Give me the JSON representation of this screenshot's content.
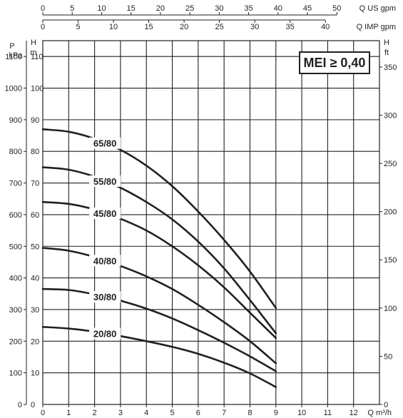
{
  "chart_data": {
    "type": "line",
    "mei_label": "MEI ≥ 0,40",
    "axes": {
      "x": {
        "label": "Q m³/h",
        "min": 0,
        "max": 13,
        "ticks": [
          0,
          1,
          2,
          3,
          4,
          5,
          6,
          7,
          8,
          9,
          10,
          11,
          12
        ]
      },
      "x_us": {
        "label": "Q US gpm",
        "ticks": [
          0,
          5,
          10,
          15,
          20,
          25,
          30,
          35,
          40,
          45,
          50
        ]
      },
      "x_imp": {
        "label": "Q IMP gpm",
        "ticks": [
          0,
          5,
          10,
          15,
          20,
          25,
          30,
          35,
          40
        ]
      },
      "y_m": {
        "label_top": "H",
        "label_unit": "m",
        "min": 0,
        "max": 115,
        "ticks": [
          0,
          10,
          20,
          30,
          40,
          50,
          60,
          70,
          80,
          90,
          100,
          110
        ]
      },
      "y_kpa": {
        "label_top": "P",
        "label_unit": "kPa",
        "ticks": [
          0,
          100,
          200,
          300,
          400,
          500,
          600,
          700,
          800,
          900,
          1000,
          1100
        ]
      },
      "y_ft": {
        "label_top": "H",
        "label_unit": "ft",
        "ticks": [
          0,
          50,
          100,
          150,
          200,
          250,
          300,
          350
        ]
      },
      "grid": true
    },
    "series": [
      {
        "name": "65/80",
        "x": [
          0,
          1,
          2,
          3,
          4,
          5,
          6,
          7,
          8,
          9
        ],
        "y": [
          87,
          86.2,
          84,
          80.5,
          75.5,
          69,
          61,
          52,
          42,
          30.5
        ]
      },
      {
        "name": "55/80",
        "x": [
          0,
          1,
          2,
          3,
          4,
          5,
          6,
          7,
          8,
          9
        ],
        "y": [
          75,
          74.2,
          72,
          68.5,
          64,
          58.5,
          51.5,
          43,
          33,
          22.5
        ]
      },
      {
        "name": "45/80",
        "x": [
          0,
          1,
          2,
          3,
          4,
          5,
          6,
          7,
          8,
          9
        ],
        "y": [
          64,
          63.4,
          61.6,
          58.7,
          55,
          50,
          44,
          37,
          29,
          21
        ]
      },
      {
        "name": "40/80",
        "x": [
          0,
          1,
          2,
          3,
          4,
          5,
          6,
          7,
          8,
          9
        ],
        "y": [
          49.5,
          48.6,
          46.6,
          43.8,
          40.5,
          36.5,
          31.5,
          26,
          20,
          13
        ]
      },
      {
        "name": "30/80",
        "x": [
          0,
          1,
          2,
          3,
          4,
          5,
          6,
          7,
          8,
          9
        ],
        "y": [
          36.5,
          36.2,
          34.8,
          32.8,
          30.3,
          27.2,
          23.5,
          19.5,
          15.2,
          10.5
        ]
      },
      {
        "name": "20/80",
        "x": [
          0,
          1,
          2,
          3,
          4,
          5,
          6,
          7,
          8,
          9
        ],
        "y": [
          24.5,
          24,
          23,
          21.6,
          20,
          18.2,
          16,
          13.2,
          9.8,
          5.5
        ]
      }
    ]
  }
}
